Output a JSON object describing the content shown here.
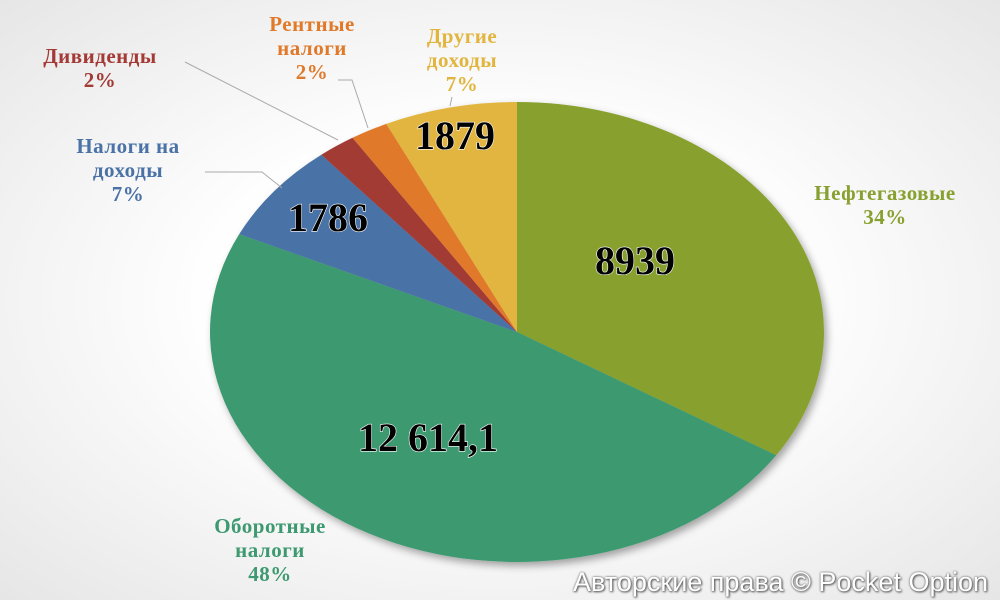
{
  "chart_data": {
    "type": "pie",
    "categories": [
      "Нефтегазовые",
      "Оборотные\nналоги",
      "Налоги на\nдоходы",
      "Дивиденды",
      "Рентные\nналоги",
      "Другие\nдоходы"
    ],
    "values": [
      34,
      48,
      7,
      2,
      2,
      7
    ],
    "value_labels": [
      "34%",
      "48%",
      "7%",
      "2%",
      "2%",
      "7%"
    ],
    "amounts": [
      8939,
      12614.1,
      1786,
      null,
      null,
      1879
    ],
    "amount_labels": [
      "8939",
      "12 614,1",
      "1786",
      null,
      null,
      "1879"
    ],
    "colors": [
      "#87a02f",
      "#3d9970",
      "#4a72a6",
      "#a33a36",
      "#e07a2a",
      "#e2b53f"
    ],
    "watermark": "Авторские права © Pocket Option"
  }
}
